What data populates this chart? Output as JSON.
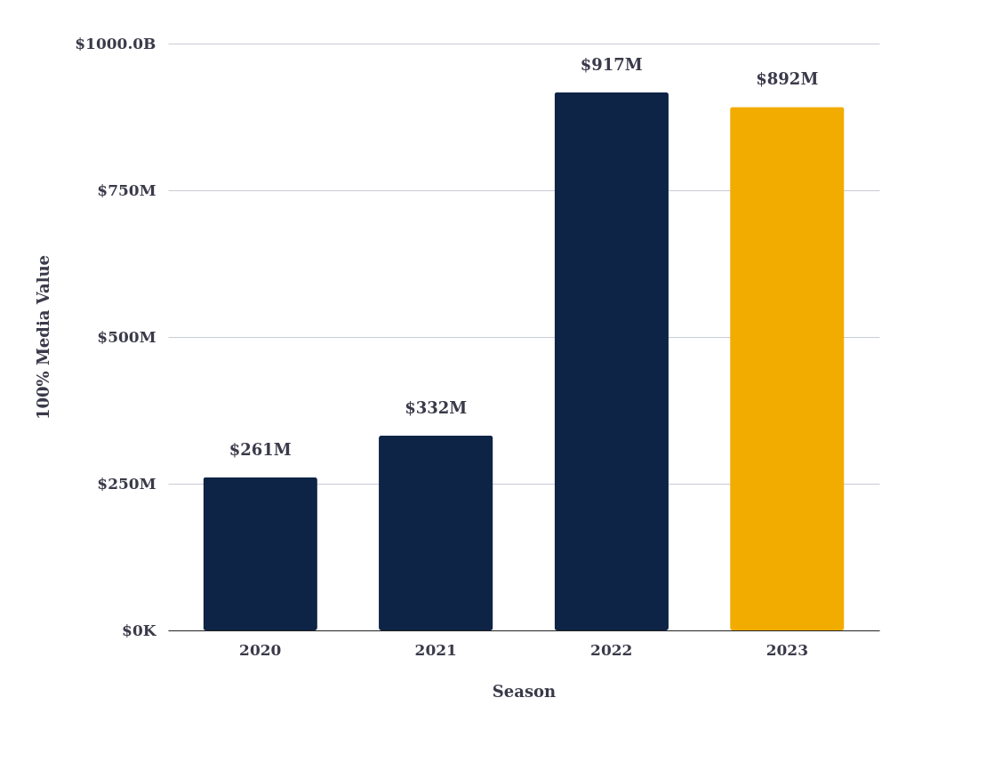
{
  "chart_data": {
    "type": "bar",
    "xlabel": "Season",
    "ylabel": "100% Media Value",
    "categories": [
      "2020",
      "2021",
      "2022",
      "2023"
    ],
    "values": [
      261,
      332,
      917,
      892
    ],
    "colors": [
      "#0e2446",
      "#0e2446",
      "#0e2446",
      "#f2ac00"
    ],
    "value_labels": [
      "$261M",
      "$332M",
      "$917M",
      "$892M"
    ],
    "ylim": [
      0,
      1000
    ],
    "yticks": [
      {
        "value": 0,
        "label": "$0K"
      },
      {
        "value": 250,
        "label": "$250M"
      },
      {
        "value": 500,
        "label": "$500M"
      },
      {
        "value": 750,
        "label": "$750M"
      },
      {
        "value": 1000,
        "label": "$1000.0B"
      }
    ],
    "grid": "y"
  }
}
